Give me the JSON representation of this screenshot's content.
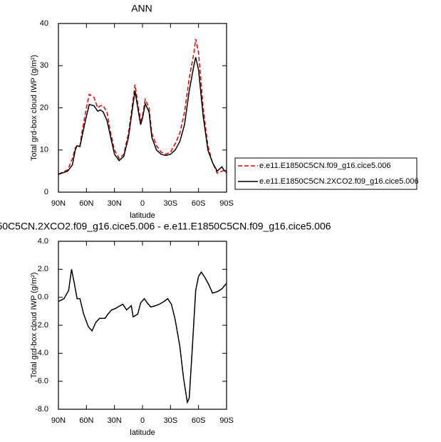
{
  "chart_data": [
    {
      "type": "line",
      "title": "ANN",
      "xlabel": "latitude",
      "ylabel": "Total grd-box cloud IWP (g/m²)",
      "x": [
        90,
        85,
        80,
        75,
        72,
        70,
        67,
        65,
        60,
        57,
        52,
        48,
        45,
        42,
        38,
        35,
        30,
        25,
        20,
        15,
        10,
        8,
        5,
        2,
        0,
        -3,
        -7,
        -10,
        -15,
        -20,
        -25,
        -30,
        -35,
        -40,
        -45,
        -50,
        -55,
        -57,
        -60,
        -65,
        -70,
        -75,
        -80,
        -85,
        -88,
        -90
      ],
      "series": [
        {
          "name": "e.e11.E1850C5CN.f09_g16.cice5.006",
          "color": "#e00000",
          "dashed": true,
          "values": [
            4.3,
            4.8,
            5.3,
            8,
            10.5,
            11,
            11,
            14,
            20,
            23.2,
            22.5,
            20,
            20.5,
            20.5,
            19,
            15,
            10,
            8,
            9,
            14,
            22,
            25.5,
            21,
            17,
            18,
            22,
            20,
            14,
            11,
            9.5,
            9,
            9.5,
            11.5,
            14,
            19,
            27,
            33,
            36.3,
            33,
            20,
            11,
            7,
            4.5,
            5,
            5.2,
            4.5
          ]
        },
        {
          "name": "e.e11.E1850C5CN.2XCO2.f09_g16.cice5.006",
          "color": "#000000",
          "dashed": false,
          "values": [
            4.2,
            4.6,
            5.0,
            6.5,
            10,
            11,
            10.8,
            13,
            18,
            20.8,
            20.5,
            19.2,
            19.5,
            19,
            17,
            14,
            9,
            7.5,
            8.5,
            13,
            21,
            24,
            20,
            16,
            17.5,
            21,
            19,
            13,
            10,
            9,
            8.7,
            9,
            10,
            12,
            16,
            24,
            30,
            32,
            29,
            18,
            10,
            7,
            5,
            6,
            5,
            5.2
          ]
        }
      ],
      "xlim": [
        90,
        -90
      ],
      "xticks": [
        {
          "value": 90,
          "label": "90N"
        },
        {
          "value": 60,
          "label": "60N"
        },
        {
          "value": 30,
          "label": "30N"
        },
        0,
        {
          "value": -30,
          "label": "30S"
        },
        {
          "value": -60,
          "label": "60S"
        },
        {
          "value": -90,
          "label": "90S"
        }
      ],
      "ylim": [
        0,
        40
      ],
      "yticks": [
        0,
        10,
        20,
        30,
        40
      ],
      "legend": "right"
    },
    {
      "type": "line",
      "title": "50C5CN.2XCO2.f09_g16.cice5.006 - e.e11.E1850C5CN.f09_g16.cice5.006",
      "xlabel": "latitude",
      "ylabel": "Total grd-box cloud IWP (g/m²)",
      "x": [
        90,
        84,
        79,
        76,
        73,
        70,
        67,
        63,
        58,
        54,
        50,
        46,
        40,
        37,
        33,
        29,
        24,
        21,
        17,
        12,
        10,
        5,
        2,
        -2,
        -5,
        -9,
        -14,
        -18,
        -23,
        -27,
        -31,
        -35,
        -40,
        -44,
        -48,
        -50,
        -53,
        -57,
        -60,
        -63,
        -67,
        -71,
        -75,
        -80,
        -85,
        -90
      ],
      "values": [
        -0.3,
        -0.1,
        0.5,
        2.0,
        1.0,
        -0.1,
        -0.1,
        -1.2,
        -2.1,
        -2.4,
        -1.8,
        -1.5,
        -1.5,
        -1.2,
        -0.9,
        -0.8,
        -0.6,
        -0.5,
        -0.9,
        -0.6,
        -1.4,
        -1.2,
        -0.4,
        -0.1,
        -0.4,
        -0.7,
        -0.6,
        -0.5,
        -0.3,
        -0.1,
        -0.5,
        -1.6,
        -3.5,
        -5.8,
        -7.5,
        -7.2,
        -4.0,
        0.5,
        1.5,
        1.8,
        1.4,
        0.9,
        0.3,
        0.4,
        0.6,
        1.0
      ],
      "color": "#000000",
      "xlim": [
        90,
        -90
      ],
      "xticks": [
        {
          "value": 90,
          "label": "90N"
        },
        {
          "value": 60,
          "label": "60N"
        },
        {
          "value": 30,
          "label": "30N"
        },
        0,
        {
          "value": -30,
          "label": "30S"
        },
        {
          "value": -60,
          "label": "60S"
        },
        {
          "value": -90,
          "label": "90S"
        }
      ],
      "ylim": [
        -8,
        4
      ],
      "yticks": [
        {
          "value": -8,
          "label": "-8.0"
        },
        {
          "value": -6,
          "label": "-6.0"
        },
        {
          "value": -4,
          "label": "-4.0"
        },
        {
          "value": -2,
          "label": "-2.0"
        },
        {
          "value": 0,
          "label": "0.0"
        },
        {
          "value": 2,
          "label": "2.0"
        },
        {
          "value": 4,
          "label": "4.0"
        }
      ]
    }
  ]
}
